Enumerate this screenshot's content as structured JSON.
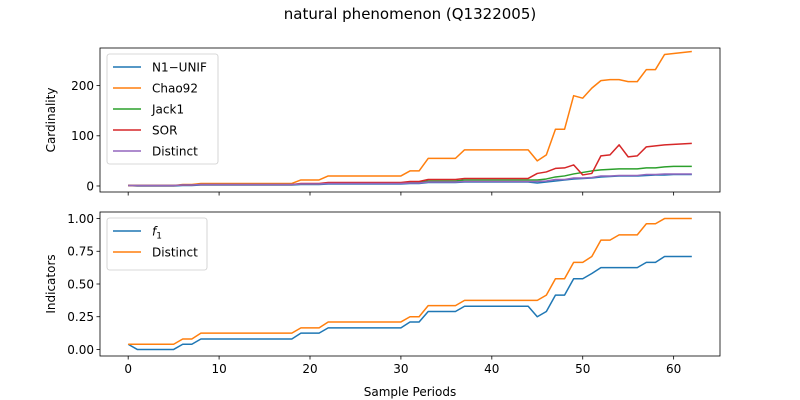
{
  "figure": {
    "title": "natural phenomenon (Q1322005)"
  },
  "colors": {
    "blue": "#1f77b4",
    "orange": "#ff7f0e",
    "green": "#2ca02c",
    "red": "#d62728",
    "purple": "#9467bd"
  },
  "chart_data": [
    {
      "type": "line",
      "title": "",
      "xlabel": "",
      "ylabel": "Cardinality",
      "xlim": [
        -3.1,
        65.1
      ],
      "ylim": [
        -12,
        275
      ],
      "x_ticks": [
        0,
        10,
        20,
        30,
        40,
        50,
        60
      ],
      "x_tick_labels_shown": false,
      "y_ticks": [
        0,
        100,
        200
      ],
      "y_tick_labels": [
        "0",
        "100",
        "200"
      ],
      "legend": "upper-left",
      "grid": false,
      "series": [
        {
          "name": "N1−UNIF",
          "color": "#1f77b4",
          "x": [
            0,
            1,
            2,
            3,
            4,
            5,
            6,
            7,
            8,
            9,
            10,
            11,
            12,
            13,
            14,
            15,
            16,
            17,
            18,
            19,
            20,
            21,
            22,
            23,
            24,
            25,
            26,
            27,
            28,
            29,
            30,
            31,
            32,
            33,
            34,
            35,
            36,
            37,
            38,
            39,
            40,
            41,
            42,
            43,
            44,
            45,
            46,
            47,
            48,
            49,
            50,
            51,
            52,
            53,
            54,
            55,
            56,
            57,
            58,
            59,
            60,
            61,
            62
          ],
          "values": [
            1,
            0,
            0,
            0,
            0,
            0,
            1,
            1,
            2,
            2,
            2,
            2,
            2,
            2,
            2,
            2,
            2,
            2,
            2,
            3,
            3,
            3,
            4,
            4,
            4,
            4,
            4,
            4,
            4,
            4,
            4,
            5,
            5,
            7,
            7,
            7,
            7,
            8,
            8,
            8,
            8,
            8,
            8,
            8,
            8,
            6,
            8,
            10,
            12,
            14,
            15,
            16,
            18,
            19,
            20,
            20,
            20,
            21,
            22,
            22,
            23,
            23,
            23
          ]
        },
        {
          "name": "Chao92",
          "color": "#ff7f0e",
          "x": [
            0,
            1,
            2,
            3,
            4,
            5,
            6,
            7,
            8,
            9,
            10,
            11,
            12,
            13,
            14,
            15,
            16,
            17,
            18,
            19,
            20,
            21,
            22,
            23,
            24,
            25,
            26,
            27,
            28,
            29,
            30,
            31,
            32,
            33,
            34,
            35,
            36,
            37,
            38,
            39,
            40,
            41,
            42,
            43,
            44,
            45,
            46,
            47,
            48,
            49,
            50,
            51,
            52,
            53,
            54,
            55,
            56,
            57,
            58,
            59,
            60,
            61,
            62
          ],
          "values": [
            1,
            1,
            1,
            1,
            1,
            1,
            3,
            3,
            5,
            5,
            5,
            5,
            5,
            5,
            5,
            5,
            5,
            5,
            5,
            12,
            12,
            12,
            20,
            20,
            20,
            20,
            20,
            20,
            20,
            20,
            20,
            30,
            30,
            55,
            55,
            55,
            55,
            72,
            72,
            72,
            72,
            72,
            72,
            72,
            72,
            50,
            62,
            113,
            113,
            180,
            175,
            195,
            210,
            212,
            212,
            208,
            208,
            232,
            232,
            262,
            264,
            266,
            268
          ]
        },
        {
          "name": "Jack1",
          "color": "#2ca02c",
          "x": [
            0,
            1,
            2,
            3,
            4,
            5,
            6,
            7,
            8,
            9,
            10,
            11,
            12,
            13,
            14,
            15,
            16,
            17,
            18,
            19,
            20,
            21,
            22,
            23,
            24,
            25,
            26,
            27,
            28,
            29,
            30,
            31,
            32,
            33,
            34,
            35,
            36,
            37,
            38,
            39,
            40,
            41,
            42,
            43,
            44,
            45,
            46,
            47,
            48,
            49,
            50,
            51,
            52,
            53,
            54,
            55,
            56,
            57,
            58,
            59,
            60,
            61,
            62
          ],
          "values": [
            1,
            1,
            1,
            1,
            1,
            1,
            2,
            2,
            3,
            3,
            3,
            3,
            3,
            3,
            3,
            3,
            3,
            3,
            3,
            4,
            4,
            4,
            6,
            6,
            6,
            6,
            6,
            6,
            6,
            6,
            6,
            7,
            7,
            10,
            10,
            10,
            10,
            12,
            12,
            12,
            12,
            12,
            12,
            12,
            12,
            12,
            14,
            18,
            20,
            24,
            27,
            30,
            32,
            33,
            34,
            34,
            34,
            36,
            36,
            38,
            39,
            39,
            39
          ]
        },
        {
          "name": "SOR",
          "color": "#d62728",
          "x": [
            0,
            1,
            2,
            3,
            4,
            5,
            6,
            7,
            8,
            9,
            10,
            11,
            12,
            13,
            14,
            15,
            16,
            17,
            18,
            19,
            20,
            21,
            22,
            23,
            24,
            25,
            26,
            27,
            28,
            29,
            30,
            31,
            32,
            33,
            34,
            35,
            36,
            37,
            38,
            39,
            40,
            41,
            42,
            43,
            44,
            45,
            46,
            47,
            48,
            49,
            50,
            51,
            52,
            53,
            54,
            55,
            56,
            57,
            58,
            59,
            60,
            61,
            62
          ],
          "values": [
            1,
            1,
            1,
            1,
            1,
            1,
            2,
            2,
            3,
            3,
            3,
            3,
            3,
            3,
            3,
            3,
            3,
            3,
            3,
            5,
            5,
            5,
            7,
            7,
            7,
            7,
            7,
            7,
            7,
            7,
            7,
            9,
            9,
            13,
            13,
            13,
            13,
            15,
            15,
            15,
            15,
            15,
            15,
            15,
            15,
            25,
            28,
            35,
            36,
            42,
            22,
            25,
            60,
            62,
            82,
            58,
            60,
            78,
            80,
            82,
            83,
            84,
            85
          ]
        },
        {
          "name": "Distinct",
          "color": "#9467bd",
          "x": [
            0,
            1,
            2,
            3,
            4,
            5,
            6,
            7,
            8,
            9,
            10,
            11,
            12,
            13,
            14,
            15,
            16,
            17,
            18,
            19,
            20,
            21,
            22,
            23,
            24,
            25,
            26,
            27,
            28,
            29,
            30,
            31,
            32,
            33,
            34,
            35,
            36,
            37,
            38,
            39,
            40,
            41,
            42,
            43,
            44,
            45,
            46,
            47,
            48,
            49,
            50,
            51,
            52,
            53,
            54,
            55,
            56,
            57,
            58,
            59,
            60,
            61,
            62
          ],
          "values": [
            1,
            1,
            1,
            1,
            1,
            1,
            2,
            2,
            3,
            3,
            3,
            3,
            3,
            3,
            3,
            3,
            3,
            3,
            3,
            4,
            4,
            4,
            5,
            5,
            5,
            5,
            5,
            5,
            5,
            5,
            5,
            6,
            6,
            8,
            8,
            8,
            8,
            9,
            9,
            9,
            9,
            9,
            9,
            9,
            9,
            9,
            10,
            13,
            13,
            16,
            16,
            17,
            20,
            20,
            21,
            21,
            21,
            23,
            23,
            24,
            24,
            24,
            24
          ]
        }
      ]
    },
    {
      "type": "line",
      "title": "",
      "xlabel": "Sample Periods",
      "ylabel": "Indicators",
      "xlim": [
        -3.1,
        65.1
      ],
      "ylim": [
        -0.05,
        1.05
      ],
      "x_ticks": [
        0,
        10,
        20,
        30,
        40,
        50,
        60
      ],
      "x_tick_labels": [
        "0",
        "10",
        "20",
        "30",
        "40",
        "50",
        "60"
      ],
      "y_ticks": [
        0,
        0.25,
        0.5,
        0.75,
        1.0
      ],
      "y_tick_labels": [
        "0.00",
        "0.25",
        "0.50",
        "0.75",
        "1.00"
      ],
      "legend": "upper-left",
      "grid": false,
      "series": [
        {
          "name": "f1",
          "color": "#1f77b4",
          "x": [
            0,
            1,
            2,
            3,
            4,
            5,
            6,
            7,
            8,
            9,
            10,
            11,
            12,
            13,
            14,
            15,
            16,
            17,
            18,
            19,
            20,
            21,
            22,
            23,
            24,
            25,
            26,
            27,
            28,
            29,
            30,
            31,
            32,
            33,
            34,
            35,
            36,
            37,
            38,
            39,
            40,
            41,
            42,
            43,
            44,
            45,
            46,
            47,
            48,
            49,
            50,
            51,
            52,
            53,
            54,
            55,
            56,
            57,
            58,
            59,
            60,
            61,
            62
          ],
          "values": [
            0.04,
            0,
            0,
            0,
            0,
            0,
            0.04,
            0.04,
            0.08,
            0.08,
            0.08,
            0.08,
            0.08,
            0.08,
            0.08,
            0.08,
            0.08,
            0.08,
            0.08,
            0.125,
            0.125,
            0.125,
            0.165,
            0.165,
            0.165,
            0.165,
            0.165,
            0.165,
            0.165,
            0.165,
            0.165,
            0.21,
            0.21,
            0.29,
            0.29,
            0.29,
            0.29,
            0.33,
            0.33,
            0.33,
            0.33,
            0.33,
            0.33,
            0.33,
            0.33,
            0.25,
            0.29,
            0.415,
            0.415,
            0.54,
            0.54,
            0.58,
            0.625,
            0.625,
            0.625,
            0.625,
            0.625,
            0.665,
            0.665,
            0.71,
            0.71,
            0.71,
            0.71
          ]
        },
        {
          "name": "Distinct",
          "color": "#ff7f0e",
          "x": [
            0,
            1,
            2,
            3,
            4,
            5,
            6,
            7,
            8,
            9,
            10,
            11,
            12,
            13,
            14,
            15,
            16,
            17,
            18,
            19,
            20,
            21,
            22,
            23,
            24,
            25,
            26,
            27,
            28,
            29,
            30,
            31,
            32,
            33,
            34,
            35,
            36,
            37,
            38,
            39,
            40,
            41,
            42,
            43,
            44,
            45,
            46,
            47,
            48,
            49,
            50,
            51,
            52,
            53,
            54,
            55,
            56,
            57,
            58,
            59,
            60,
            61,
            62
          ],
          "values": [
            0.04,
            0.04,
            0.04,
            0.04,
            0.04,
            0.04,
            0.08,
            0.08,
            0.125,
            0.125,
            0.125,
            0.125,
            0.125,
            0.125,
            0.125,
            0.125,
            0.125,
            0.125,
            0.125,
            0.165,
            0.165,
            0.165,
            0.21,
            0.21,
            0.21,
            0.21,
            0.21,
            0.21,
            0.21,
            0.21,
            0.21,
            0.25,
            0.25,
            0.335,
            0.335,
            0.335,
            0.335,
            0.375,
            0.375,
            0.375,
            0.375,
            0.375,
            0.375,
            0.375,
            0.375,
            0.375,
            0.415,
            0.54,
            0.54,
            0.665,
            0.665,
            0.71,
            0.835,
            0.835,
            0.875,
            0.875,
            0.875,
            0.96,
            0.96,
            1.0,
            1.0,
            1.0,
            1.0
          ]
        }
      ]
    }
  ]
}
